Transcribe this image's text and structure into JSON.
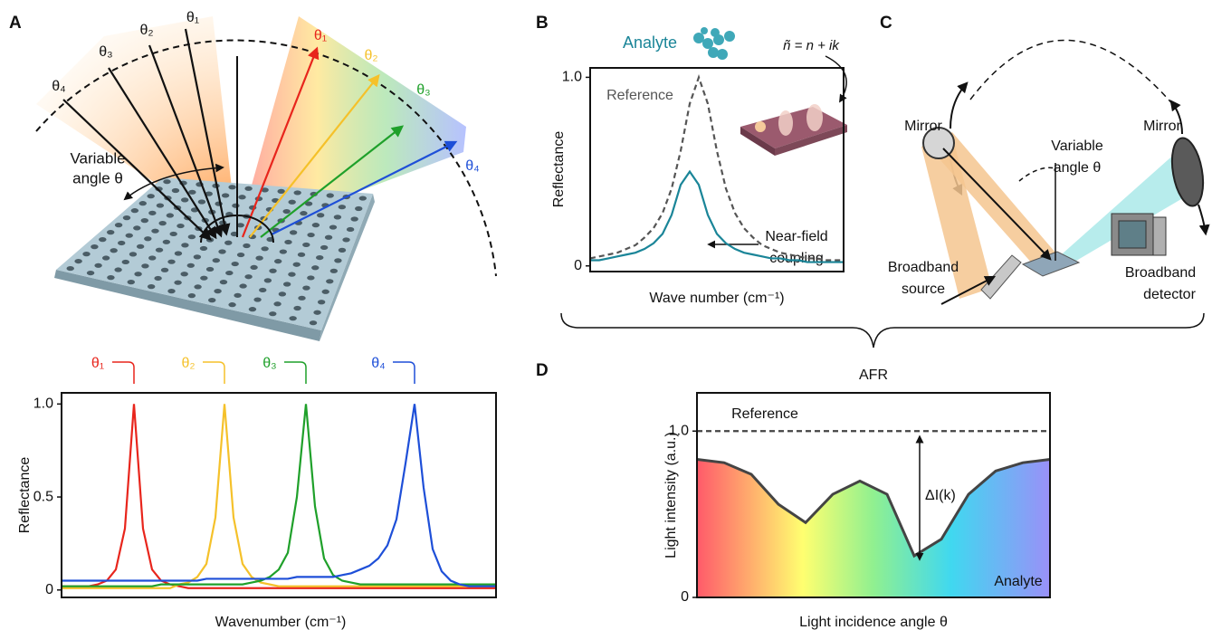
{
  "panel_labels": [
    "A",
    "B",
    "C",
    "D"
  ],
  "panel_a": {
    "incident_angles": [
      "θ₁",
      "θ₂",
      "θ₃",
      "θ₄"
    ],
    "reflected_angles": [
      "θ₁",
      "θ₂",
      "θ₃",
      "θ₄"
    ],
    "angle_label": [
      "Variable",
      "angle θ"
    ]
  },
  "panel_b": {
    "refractive_index": "ñ = n + ik",
    "annotation": [
      "Near-field",
      "coupling"
    ]
  },
  "panel_c": {
    "mirrors": [
      "Mirror",
      "Mirror"
    ],
    "angle_label": [
      "Variable",
      "angle θ"
    ],
    "source": [
      "Broadband",
      "source"
    ],
    "detector": [
      "Broadband",
      "detector"
    ]
  },
  "chart_data": [
    {
      "type": "line",
      "ylabel": "Reflectance",
      "xlabel": "Wavenumber (cm⁻¹)",
      "categories": [
        null,
        null,
        null,
        null,
        null,
        null,
        null,
        null,
        null,
        null,
        null,
        null,
        null,
        null,
        null,
        null,
        null,
        null,
        null,
        null,
        null,
        null,
        null,
        null,
        null,
        null,
        null,
        null,
        null,
        null,
        null,
        null,
        null,
        null,
        null,
        null,
        null,
        null,
        null,
        null,
        null,
        null,
        null,
        null,
        null,
        null,
        null,
        null,
        null
      ],
      "series": [
        {
          "name": "θ₁",
          "color": "#e8251c",
          "values": [
            0.02,
            0.02,
            0.02,
            0.02,
            0.03,
            0.05,
            0.11,
            0.33,
            1.0,
            0.33,
            0.11,
            0.05,
            0.03,
            0.02,
            0.01,
            0.01,
            0.01,
            0.01,
            0.01,
            0.01,
            0.01,
            0.01,
            0.01,
            0.01,
            0.01,
            0.01,
            0.01,
            0.01,
            0.01,
            0.01,
            0.01,
            0.01,
            0.01,
            0.01,
            0.01,
            0.01,
            0.01,
            0.01,
            0.01,
            0.01,
            0.01,
            0.01,
            0.01,
            0.01,
            0.01,
            0.01,
            0.01,
            0.01,
            0.01
          ]
        },
        {
          "name": "θ₂",
          "color": "#f5c12a",
          "values": [
            0.01,
            0.01,
            0.01,
            0.01,
            0.01,
            0.01,
            0.01,
            0.01,
            0.01,
            0.01,
            0.01,
            0.01,
            0.01,
            0.03,
            0.04,
            0.07,
            0.14,
            0.39,
            1.0,
            0.39,
            0.14,
            0.07,
            0.04,
            0.03,
            0.02,
            0.02,
            0.02,
            0.02,
            0.02,
            0.02,
            0.02,
            0.02,
            0.02,
            0.02,
            0.02,
            0.02,
            0.02,
            0.02,
            0.02,
            0.02,
            0.02,
            0.02,
            0.02,
            0.02,
            0.02,
            0.02,
            0.02,
            0.02,
            0.02
          ]
        },
        {
          "name": "θ₃",
          "color": "#1fa02a",
          "values": [
            0.02,
            0.02,
            0.02,
            0.02,
            0.02,
            0.02,
            0.02,
            0.02,
            0.02,
            0.02,
            0.02,
            0.03,
            0.03,
            0.03,
            0.03,
            0.03,
            0.03,
            0.03,
            0.03,
            0.03,
            0.03,
            0.04,
            0.05,
            0.07,
            0.11,
            0.2,
            0.5,
            1.0,
            0.45,
            0.17,
            0.08,
            0.05,
            0.04,
            0.03,
            0.03,
            0.03,
            0.03,
            0.03,
            0.03,
            0.03,
            0.03,
            0.03,
            0.03,
            0.03,
            0.03,
            0.03,
            0.03,
            0.03,
            0.03
          ]
        },
        {
          "name": "θ₄",
          "color": "#1e4fd8",
          "values": [
            0.05,
            0.05,
            0.05,
            0.05,
            0.05,
            0.05,
            0.05,
            0.05,
            0.05,
            0.05,
            0.05,
            0.05,
            0.05,
            0.05,
            0.05,
            0.05,
            0.06,
            0.06,
            0.06,
            0.06,
            0.06,
            0.06,
            0.06,
            0.06,
            0.06,
            0.06,
            0.07,
            0.07,
            0.07,
            0.07,
            0.07,
            0.08,
            0.09,
            0.11,
            0.13,
            0.17,
            0.24,
            0.38,
            0.68,
            1.0,
            0.55,
            0.22,
            0.1,
            0.05,
            0.03,
            0.02,
            0.02,
            0.02,
            0.02
          ]
        }
      ],
      "legend": "brackets",
      "ylim": [
        -0.04,
        1.06
      ],
      "yticks": [
        0,
        0.5,
        {
          "value": 1,
          "label": "1.0"
        }
      ],
      "grid": false
    },
    {
      "type": "line",
      "ylabel": "Reflectance",
      "xlabel": "Wave number (cm⁻¹)",
      "categories": [
        null,
        null,
        null,
        null,
        null,
        null,
        null,
        null,
        null,
        null,
        null,
        null,
        null,
        null,
        null,
        null,
        null,
        null,
        null,
        null,
        null,
        null,
        null,
        null,
        null,
        null,
        null,
        null,
        null
      ],
      "series": [
        {
          "name": "Reference",
          "color": "#555555",
          "linestyle": "dashed",
          "values": [
            0.04,
            0.05,
            0.06,
            0.07,
            0.09,
            0.11,
            0.15,
            0.2,
            0.28,
            0.41,
            0.61,
            0.86,
            1.0,
            0.86,
            0.61,
            0.41,
            0.28,
            0.2,
            0.15,
            0.11,
            0.09,
            0.07,
            0.06,
            0.05,
            0.04,
            0.04,
            0.03,
            0.03,
            0.03
          ]
        },
        {
          "name": "Analyte",
          "color": "#1a8598",
          "values": [
            0.03,
            0.03,
            0.04,
            0.05,
            0.06,
            0.07,
            0.09,
            0.12,
            0.17,
            0.27,
            0.43,
            0.5,
            0.43,
            0.27,
            0.17,
            0.12,
            0.09,
            0.07,
            0.06,
            0.05,
            0.04,
            0.04,
            0.03,
            0.03,
            0.02,
            0.02,
            0.02,
            0.02,
            0.02
          ]
        }
      ],
      "ylim": [
        -0.03,
        1.05
      ],
      "yticks": [
        0,
        {
          "value": 1,
          "label": "1.0"
        }
      ],
      "grid": false
    },
    {
      "type": "line",
      "title": "AFR",
      "ylabel": "Light intensity (a.u.)",
      "xlabel": "Light incidence angle θ",
      "annotation": "ΔI(k)",
      "categories": [
        null,
        null,
        null,
        null,
        null,
        null,
        null,
        null,
        null,
        null,
        null,
        null,
        null,
        null
      ],
      "series": [
        {
          "name": "Reference",
          "color": "#444444",
          "linestyle": "dashed",
          "values": [
            1.0,
            1.0,
            1.0,
            1.0,
            1.0,
            1.0,
            1.0,
            1.0,
            1.0,
            1.0,
            1.0,
            1.0,
            1.0,
            1.0
          ]
        },
        {
          "name": "Analyte",
          "color": "#444444",
          "fill": true,
          "values": [
            0.83,
            0.81,
            0.74,
            0.56,
            0.45,
            0.62,
            0.7,
            0.62,
            0.25,
            0.35,
            0.62,
            0.76,
            0.81,
            0.83
          ]
        }
      ],
      "ylim": [
        0,
        1.23
      ],
      "yticks": [
        0,
        {
          "value": 1,
          "label": "1.0"
        }
      ],
      "grid": false
    }
  ]
}
